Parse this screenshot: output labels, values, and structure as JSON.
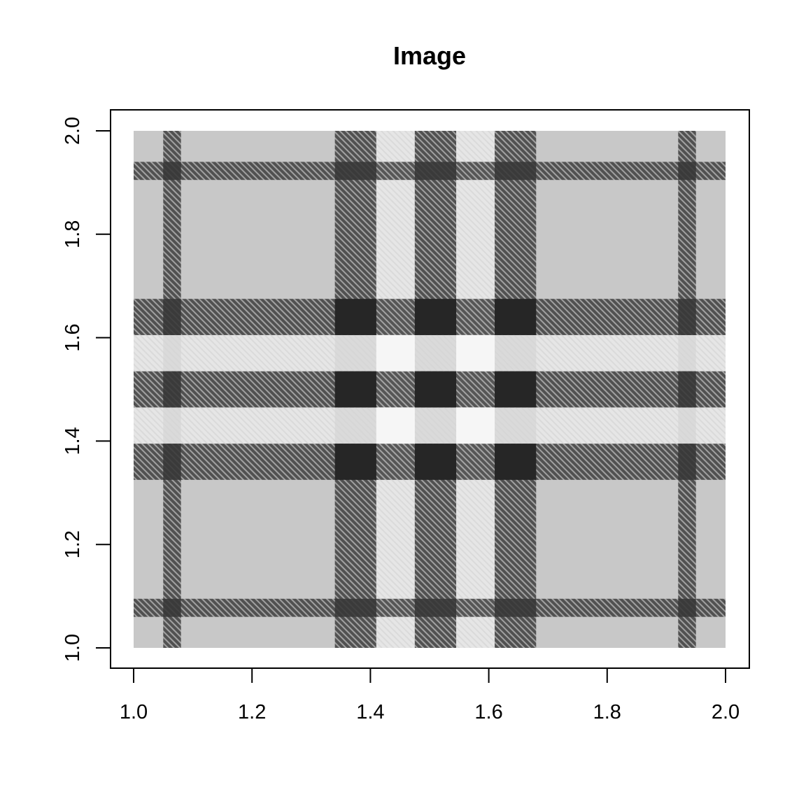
{
  "chart_data": {
    "type": "heatmap",
    "title": "Image",
    "xlabel": "",
    "ylabel": "",
    "xlim": [
      1.0,
      2.0
    ],
    "ylim": [
      1.0,
      2.0
    ],
    "x_ticks": [
      1.0,
      1.2,
      1.4,
      1.6,
      1.8,
      2.0
    ],
    "y_ticks": [
      1.0,
      1.2,
      1.4,
      1.6,
      1.8,
      2.0
    ],
    "x_tick_labels": [
      "1.0",
      "1.2",
      "1.4",
      "1.6",
      "1.8",
      "2.0"
    ],
    "y_tick_labels": [
      "1.0",
      "1.2",
      "1.4",
      "1.6",
      "1.8",
      "2.0"
    ],
    "grid": false,
    "colors": {
      "background": "#c8c8c8",
      "dark_stripe": "#505050",
      "light_stripe": "#e6e6e6",
      "dark_crossing": "#262626",
      "light_crossing": "#f6f6f6"
    },
    "pattern": "tartan",
    "vertical_bands": [
      {
        "from": 1.05,
        "to": 1.08,
        "tone": "dark"
      },
      {
        "from": 1.34,
        "to": 1.41,
        "tone": "dark"
      },
      {
        "from": 1.41,
        "to": 1.475,
        "tone": "light"
      },
      {
        "from": 1.475,
        "to": 1.545,
        "tone": "dark"
      },
      {
        "from": 1.545,
        "to": 1.61,
        "tone": "light"
      },
      {
        "from": 1.61,
        "to": 1.68,
        "tone": "dark"
      },
      {
        "from": 1.92,
        "to": 1.95,
        "tone": "dark"
      }
    ],
    "horizontal_bands": [
      {
        "from": 1.06,
        "to": 1.095,
        "tone": "dark"
      },
      {
        "from": 1.325,
        "to": 1.395,
        "tone": "dark"
      },
      {
        "from": 1.395,
        "to": 1.465,
        "tone": "light"
      },
      {
        "from": 1.465,
        "to": 1.535,
        "tone": "dark"
      },
      {
        "from": 1.535,
        "to": 1.605,
        "tone": "light"
      },
      {
        "from": 1.605,
        "to": 1.675,
        "tone": "dark"
      },
      {
        "from": 1.905,
        "to": 1.94,
        "tone": "dark"
      }
    ]
  }
}
